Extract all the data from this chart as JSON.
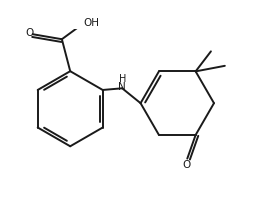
{
  "bg_color": "#ffffff",
  "line_color": "#1a1a1a",
  "line_width": 1.4,
  "fig_width": 2.6,
  "fig_height": 1.98,
  "dpi": 100,
  "cooh_o_label": "O",
  "cooh_oh_label": "OH",
  "nh_label": "H",
  "ketone_o_label": "O",
  "n_label": "N"
}
